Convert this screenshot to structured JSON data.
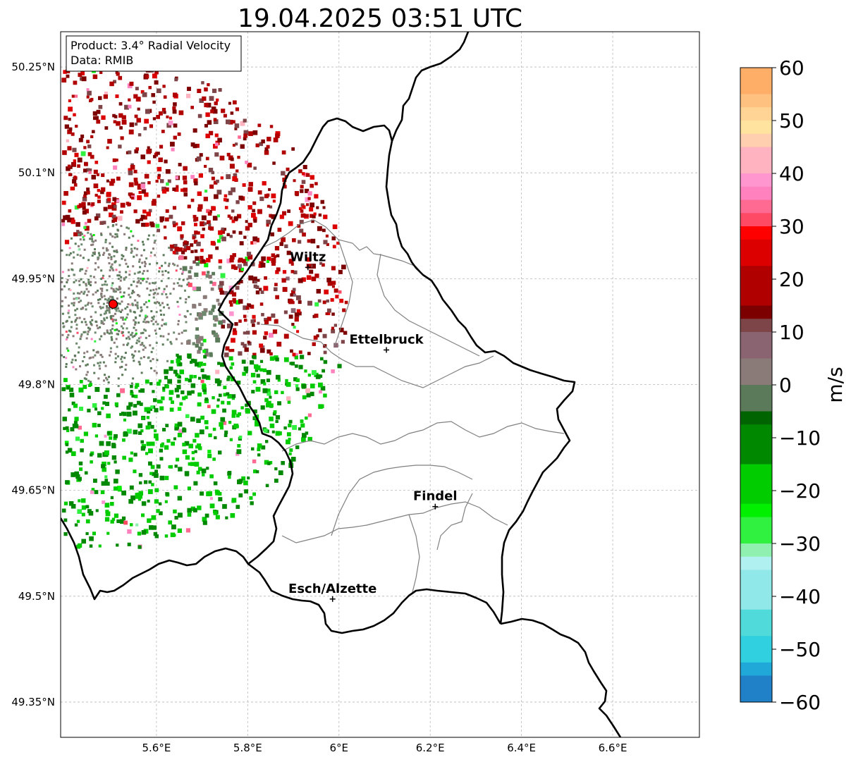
{
  "title": "19.04.2025 03:51 UTC",
  "info_box": {
    "product": "Product: 3.4° Radial Velocity",
    "data_source": "Data: RMIB"
  },
  "map": {
    "lon_range": [
      5.39,
      6.79
    ],
    "lat_range": [
      49.3,
      50.3
    ],
    "lat_ticks": [
      {
        "value": 50.25,
        "label": "50.25°N"
      },
      {
        "value": 50.1,
        "label": "50.1°N"
      },
      {
        "value": 49.95,
        "label": "49.95°N"
      },
      {
        "value": 49.8,
        "label": "49.8°N"
      },
      {
        "value": 49.65,
        "label": "49.65°N"
      },
      {
        "value": 49.5,
        "label": "49.5°N"
      },
      {
        "value": 49.35,
        "label": "49.35°N"
      }
    ],
    "lon_ticks": [
      {
        "value": 5.6,
        "label": "5.6°E"
      },
      {
        "value": 5.8,
        "label": "5.8°E"
      },
      {
        "value": 6.0,
        "label": "6°E"
      },
      {
        "value": 6.2,
        "label": "6.2°E"
      },
      {
        "value": 6.4,
        "label": "6.4°E"
      },
      {
        "value": 6.6,
        "label": "6.6°E"
      }
    ],
    "grid": true,
    "radar_site": {
      "lon": 5.505,
      "lat": 49.914
    },
    "cities": [
      {
        "name": "Wiltz",
        "lon": 5.932,
        "lat": 49.966
      },
      {
        "name": "Ettelbruck",
        "lon": 6.104,
        "lat": 49.849
      },
      {
        "name": "Findel",
        "lon": 6.211,
        "lat": 49.627
      },
      {
        "name": "Esch/Alzette",
        "lon": 5.986,
        "lat": 49.496
      }
    ]
  },
  "colorbar": {
    "label": "m/s",
    "min": -60,
    "max": 60,
    "ticks": [
      {
        "value": 60,
        "label": "60"
      },
      {
        "value": 50,
        "label": "50"
      },
      {
        "value": 40,
        "label": "40"
      },
      {
        "value": 30,
        "label": "30"
      },
      {
        "value": 20,
        "label": "20"
      },
      {
        "value": 10,
        "label": "10"
      },
      {
        "value": 0,
        "label": "0"
      },
      {
        "value": -10,
        "label": "−10"
      },
      {
        "value": -20,
        "label": "−20"
      },
      {
        "value": -30,
        "label": "−30"
      },
      {
        "value": -40,
        "label": "−40"
      },
      {
        "value": -50,
        "label": "−50"
      },
      {
        "value": -60,
        "label": "−60"
      }
    ],
    "stops": [
      {
        "v": 60,
        "c": "#ff9a52"
      },
      {
        "v": 56,
        "c": "#ffae68"
      },
      {
        "v": 53,
        "c": "#ffc17f"
      },
      {
        "v": 50,
        "c": "#ffd494"
      },
      {
        "v": 47,
        "c": "#ffe39e"
      },
      {
        "v": 44,
        "c": "#ffcfb0"
      },
      {
        "v": 41,
        "c": "#ffb2c0"
      },
      {
        "v": 38,
        "c": "#ff96d0"
      },
      {
        "v": 35,
        "c": "#ff82be"
      },
      {
        "v": 32,
        "c": "#ff6a92"
      },
      {
        "v": 29,
        "c": "#ff4a66"
      },
      {
        "v": 28,
        "c": "#ff0000"
      },
      {
        "v": 22,
        "c": "#dd0000"
      },
      {
        "v": 16,
        "c": "#b00000"
      },
      {
        "v": 12,
        "c": "#7d0000"
      },
      {
        "v": 9,
        "c": "#7e4548"
      },
      {
        "v": 5,
        "c": "#8a6470"
      },
      {
        "v": 1,
        "c": "#8a7a78"
      },
      {
        "v": -1,
        "c": "#6e8a6e"
      },
      {
        "v": -5,
        "c": "#5a7a5a"
      },
      {
        "v": -7,
        "c": "#006400"
      },
      {
        "v": -15,
        "c": "#008800"
      },
      {
        "v": -22,
        "c": "#00cc00"
      },
      {
        "v": -26,
        "c": "#00f000"
      },
      {
        "v": -29,
        "c": "#30f040"
      },
      {
        "v": -33,
        "c": "#90f0b0"
      },
      {
        "v": -36,
        "c": "#b0f0f0"
      },
      {
        "v": -42,
        "c": "#90e8e8"
      },
      {
        "v": -48,
        "c": "#50dada"
      },
      {
        "v": -52,
        "c": "#30d0e0"
      },
      {
        "v": -56,
        "c": "#20a8d8"
      },
      {
        "v": -60,
        "c": "#2080c8"
      }
    ]
  },
  "colors": {
    "border": "#000000",
    "district": "#808080",
    "grid": "#b8b8b8",
    "radar_site": "#ff0000"
  }
}
